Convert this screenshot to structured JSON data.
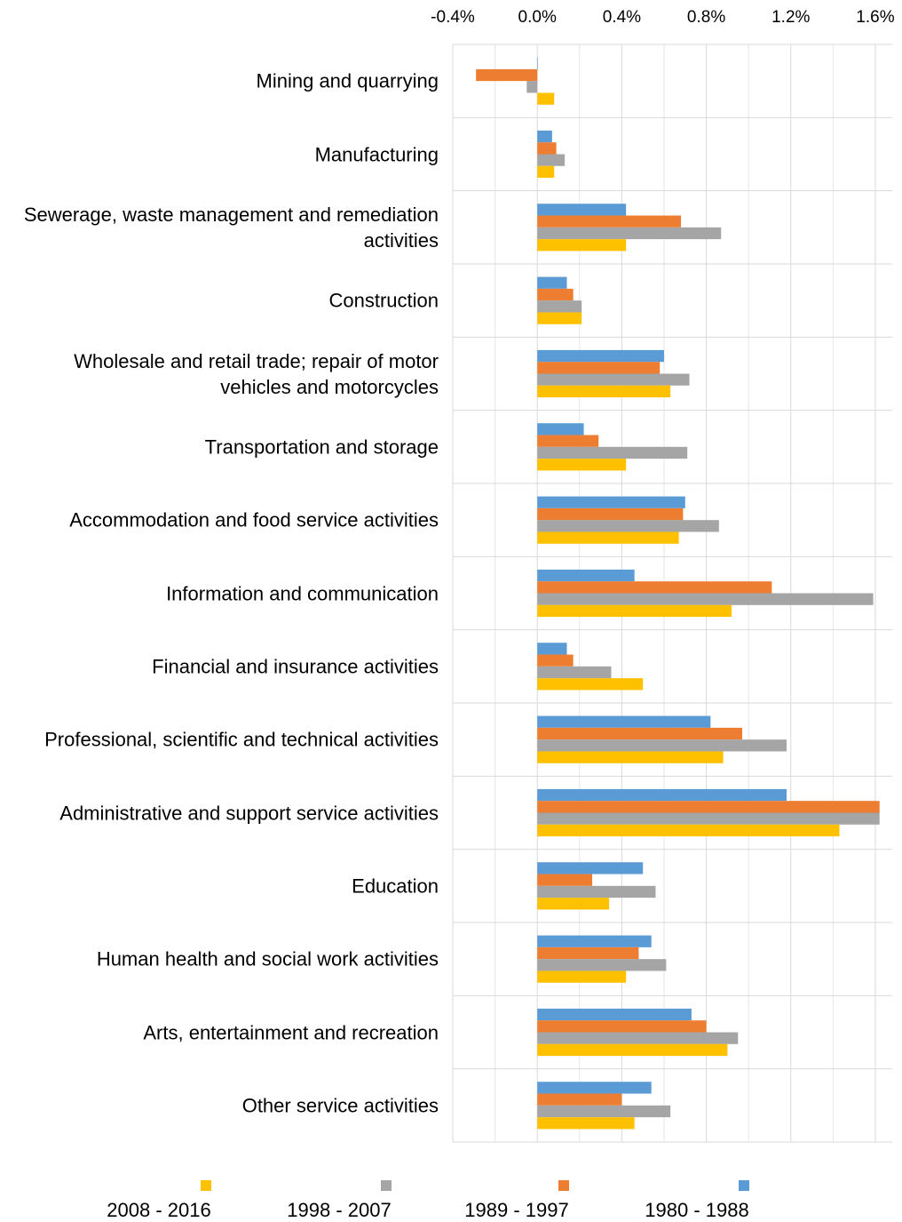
{
  "chart_data": {
    "type": "hbar",
    "categories": [
      "Mining and quarrying",
      "Manufacturing",
      "Sewerage, waste management and remediation activities",
      "Construction",
      "Wholesale and retail trade; repair of motor vehicles and motorcycles",
      "Transportation and storage",
      "Accommodation and food service activities",
      "Information and communication",
      "Financial and insurance activities",
      "Professional, scientific and technical activities",
      "Administrative and support service activities",
      "Education",
      "Human health and social work activities",
      "Arts, entertainment and recreation",
      "Other service activities"
    ],
    "series": [
      {
        "name": "1980 - 1988",
        "color": "#5B9BD5",
        "values": [
          0.0,
          0.07,
          0.42,
          0.14,
          0.6,
          0.22,
          0.7,
          0.46,
          0.14,
          0.82,
          1.18,
          0.5,
          0.54,
          0.73,
          0.54
        ]
      },
      {
        "name": "1989 - 1997",
        "color": "#ED7D31",
        "values": [
          -0.29,
          0.09,
          0.68,
          0.17,
          0.58,
          0.29,
          0.69,
          1.11,
          0.17,
          0.97,
          1.62,
          0.26,
          0.48,
          0.8,
          0.4
        ]
      },
      {
        "name": "1998 - 2007",
        "color": "#A5A5A5",
        "values": [
          -0.05,
          0.13,
          0.87,
          0.21,
          0.72,
          0.71,
          0.86,
          1.59,
          0.35,
          1.18,
          1.62,
          0.56,
          0.61,
          0.95,
          0.63
        ]
      },
      {
        "name": "2008 - 2016",
        "color": "#FFC000",
        "values": [
          0.08,
          0.08,
          0.42,
          0.21,
          0.63,
          0.42,
          0.67,
          0.92,
          0.5,
          0.88,
          1.43,
          0.34,
          0.42,
          0.9,
          0.46
        ]
      }
    ],
    "xlim": [
      -0.4,
      1.68
    ],
    "xticks": [
      {
        "value": -0.4,
        "label": "-0.4%"
      },
      {
        "value": 0,
        "label": "0.0%"
      },
      {
        "value": 0.4,
        "label": "0.4%"
      },
      {
        "value": 0.8,
        "label": "0.8%"
      },
      {
        "value": 1.2,
        "label": "1.2%"
      },
      {
        "value": 1.6,
        "label": "1.6%"
      }
    ],
    "xminor": [
      -0.2,
      0.2,
      0.6,
      1.0,
      1.4
    ],
    "grid": true,
    "legend": "bottom"
  }
}
